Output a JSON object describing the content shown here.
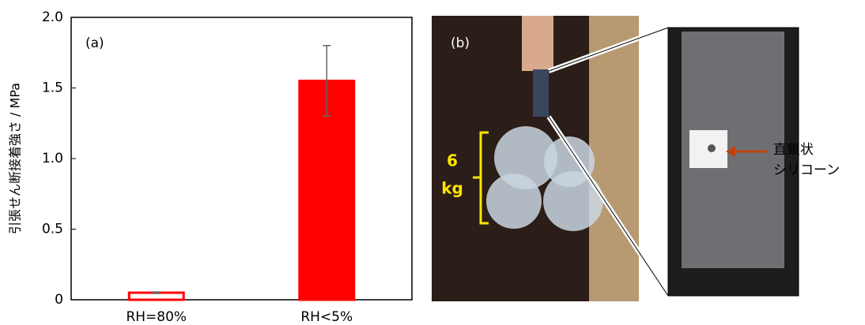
{
  "chart_data": {
    "type": "bar",
    "ylabel": "引張せん断接着強さ / MPa",
    "annotation": "(a)",
    "categories": [
      "RH=80%",
      "RH<5%"
    ],
    "values": [
      0.05,
      1.55
    ],
    "errors": [
      0.005,
      0.25
    ],
    "color": "#ff0000",
    "fills": [
      "#ffffff",
      "#ff0000"
    ],
    "ylim": [
      0,
      2.0
    ],
    "yticks": [
      0,
      0.5,
      {
        "value": 1.0,
        "label": "1.0"
      },
      1.5,
      {
        "value": 2.0,
        "label": "2.0"
      }
    ],
    "grid": false
  },
  "photo": {
    "label": "(b)",
    "weight": [
      "6",
      "kg"
    ],
    "callout": [
      "直鎖状",
      "シリコーン"
    ]
  }
}
